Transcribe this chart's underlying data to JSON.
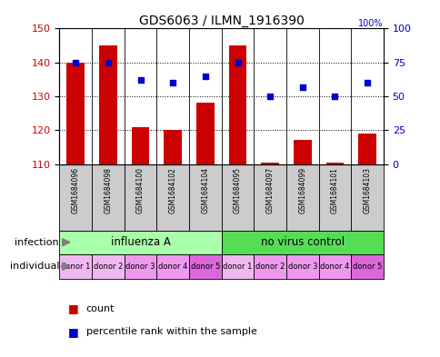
{
  "title": "GDS6063 / ILMN_1916390",
  "samples": [
    "GSM1684096",
    "GSM1684098",
    "GSM1684100",
    "GSM1684102",
    "GSM1684104",
    "GSM1684095",
    "GSM1684097",
    "GSM1684099",
    "GSM1684101",
    "GSM1684103"
  ],
  "counts": [
    140,
    145,
    121,
    120,
    128,
    145,
    110.5,
    117,
    110.5,
    119
  ],
  "percentiles": [
    75,
    75,
    62,
    60,
    65,
    75,
    50,
    57,
    50,
    60
  ],
  "ylim_left": [
    110,
    150
  ],
  "ylim_right": [
    0,
    100
  ],
  "yticks_left": [
    110,
    120,
    130,
    140,
    150
  ],
  "yticks_right": [
    0,
    25,
    50,
    75,
    100
  ],
  "bar_color": "#cc0000",
  "dot_color": "#0000cc",
  "infection_groups": [
    {
      "label": "influenza A",
      "start": 0,
      "end": 5,
      "color": "#aaffaa"
    },
    {
      "label": "no virus control",
      "start": 5,
      "end": 10,
      "color": "#55dd55"
    }
  ],
  "individuals": [
    "donor 1",
    "donor 2",
    "donor 3",
    "donor 4",
    "donor 5",
    "donor 1",
    "donor 2",
    "donor 3",
    "donor 4",
    "donor 5"
  ],
  "individual_colors": [
    "#f0b8f0",
    "#f0b8f0",
    "#ee99ee",
    "#ee99ee",
    "#dd66dd",
    "#f0b8f0",
    "#ee99ee",
    "#ee99ee",
    "#ee99ee",
    "#dd66dd"
  ],
  "legend_count_label": "count",
  "legend_percentile_label": "percentile rank within the sample",
  "tick_label_color_left": "#cc0000",
  "tick_label_color_right": "#0000cc",
  "grid_color": "#000000",
  "bar_bottom": 110,
  "sample_box_color": "#cccccc",
  "right_axis_top_label": "100%"
}
